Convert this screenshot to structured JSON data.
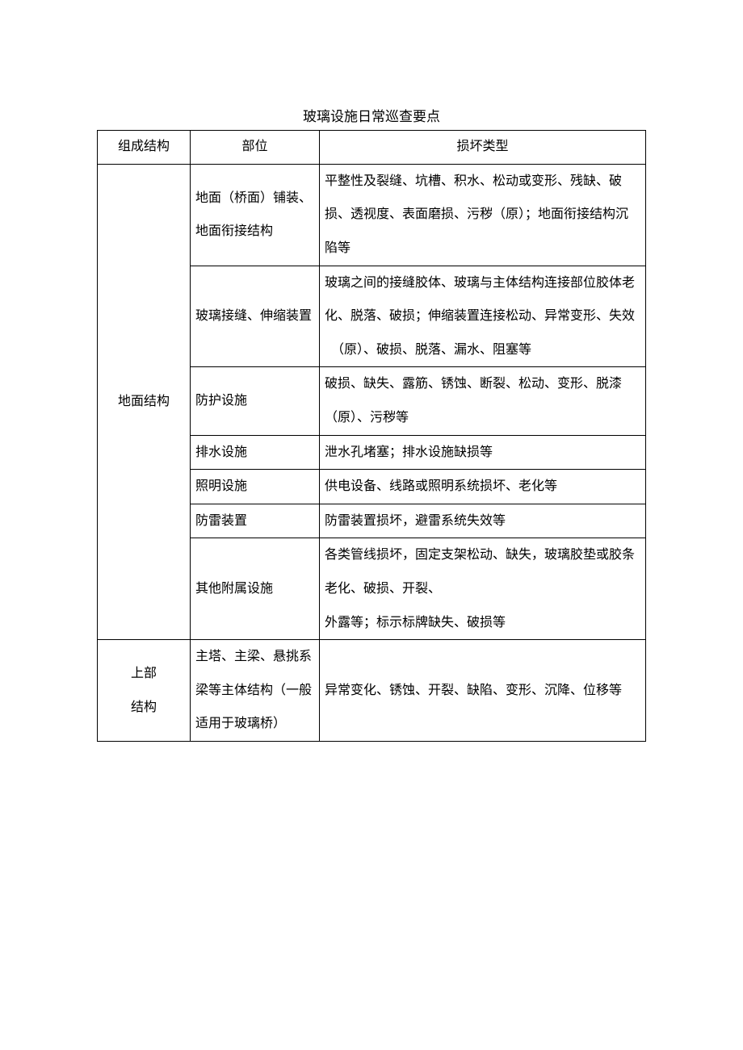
{
  "title": "玻璃设施日常巡查要点",
  "headers": {
    "c1": "组成结构",
    "c2": "部位",
    "c3": "损坏类型"
  },
  "groups": [
    {
      "name": "地面结构",
      "rows": [
        {
          "part": "地面（桥面）铺装、地面衔接结构",
          "defect": "平整性及裂缝、坑槽、积水、松动或变形、残缺、破损、透视度、表面磨损、污秽（原）；地面衔接结构沉陷等"
        },
        {
          "part": "玻璃接缝、伸缩装置",
          "defect": "玻璃之间的接缝胶体、玻璃与主体结构连接部位胶体老化、脱落、破损；伸缩装置连接松动、异常变形、失效\n　（原）、破损、脱落、漏水、阻塞等"
        },
        {
          "part": "防护设施",
          "defect": "破损、缺失、露筋、锈蚀、断裂、松动、变形、脱漆（原）、污秽等"
        },
        {
          "part": "排水设施",
          "defect": "泄水孔堵塞；排水设施缺损等"
        },
        {
          "part": "照明设施",
          "defect": "供电设备、线路或照明系统损坏、老化等"
        },
        {
          "part": "防雷装置",
          "defect": "防雷装置损坏，避雷系统失效等"
        },
        {
          "part": "其他附属设施",
          "defect": "各类管线损坏，固定支架松动、缺失，玻璃胶垫或胶条老化、破损、开裂、\n外露等；标示标牌缺失、破损等"
        }
      ]
    },
    {
      "name_line1": "上部",
      "name_line2": "结构",
      "rows": [
        {
          "part": "主塔、主梁、悬挑系梁等主体结构（一般适用于玻璃桥）",
          "defect": "异常变化、锈蚀、开裂、缺陷、变形、沉降、位移等"
        }
      ]
    }
  ]
}
